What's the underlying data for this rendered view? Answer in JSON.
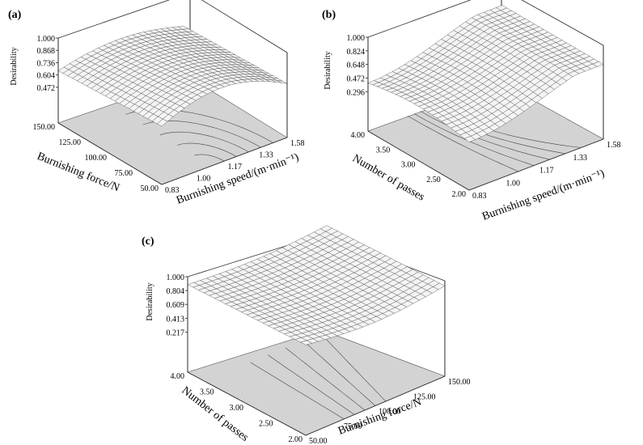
{
  "chart_data": [
    {
      "type": "surface",
      "panel_label": "(a)",
      "zlabel": "Desirability",
      "z_ticks": [
        "1.000",
        "0.868",
        "0.736",
        "0.604",
        "0.472"
      ],
      "zlim": [
        0.472,
        1.0
      ],
      "left_axis": {
        "label": "Burnishing force/N",
        "ticks": [
          "150.00",
          "125.00",
          "100.00",
          "75.00",
          "50.00"
        ],
        "range": [
          50,
          150
        ]
      },
      "right_axis": {
        "label": "Burnishing speed/(m·min⁻¹)",
        "ticks": [
          "0.83",
          "1.00",
          "1.17",
          "1.33",
          "1.58"
        ],
        "range": [
          0.83,
          1.58
        ]
      }
    },
    {
      "type": "surface",
      "panel_label": "(b)",
      "zlabel": "Desirability",
      "z_ticks": [
        "1.000",
        "0.824",
        "0.648",
        "0.472",
        "0.296"
      ],
      "zlim": [
        0.296,
        1.0
      ],
      "left_axis": {
        "label": "Number of passes",
        "ticks": [
          "4.00",
          "3.50",
          "3.00",
          "2.50",
          "2.00"
        ],
        "range": [
          2,
          4
        ]
      },
      "right_axis": {
        "label": "Burnishing speed/(m·min⁻¹)",
        "ticks": [
          "0.83",
          "1.00",
          "1.17",
          "1.33",
          "1.58"
        ],
        "range": [
          0.83,
          1.58
        ]
      }
    },
    {
      "type": "surface",
      "panel_label": "(c)",
      "zlabel": "Desirability",
      "z_ticks": [
        "1.000",
        "0.804",
        "0.609",
        "0.413",
        "0.217"
      ],
      "zlim": [
        0.217,
        1.0
      ],
      "left_axis": {
        "label": "Number of passes",
        "ticks": [
          "4.00",
          "3.50",
          "3.00",
          "2.50",
          "2.00"
        ],
        "range": [
          2,
          4
        ]
      },
      "right_axis": {
        "label": "Burnishing force/N",
        "ticks": [
          "50.00",
          "75.00",
          "100.00",
          "125.00",
          "150.00"
        ],
        "range": [
          50,
          150
        ]
      }
    }
  ]
}
